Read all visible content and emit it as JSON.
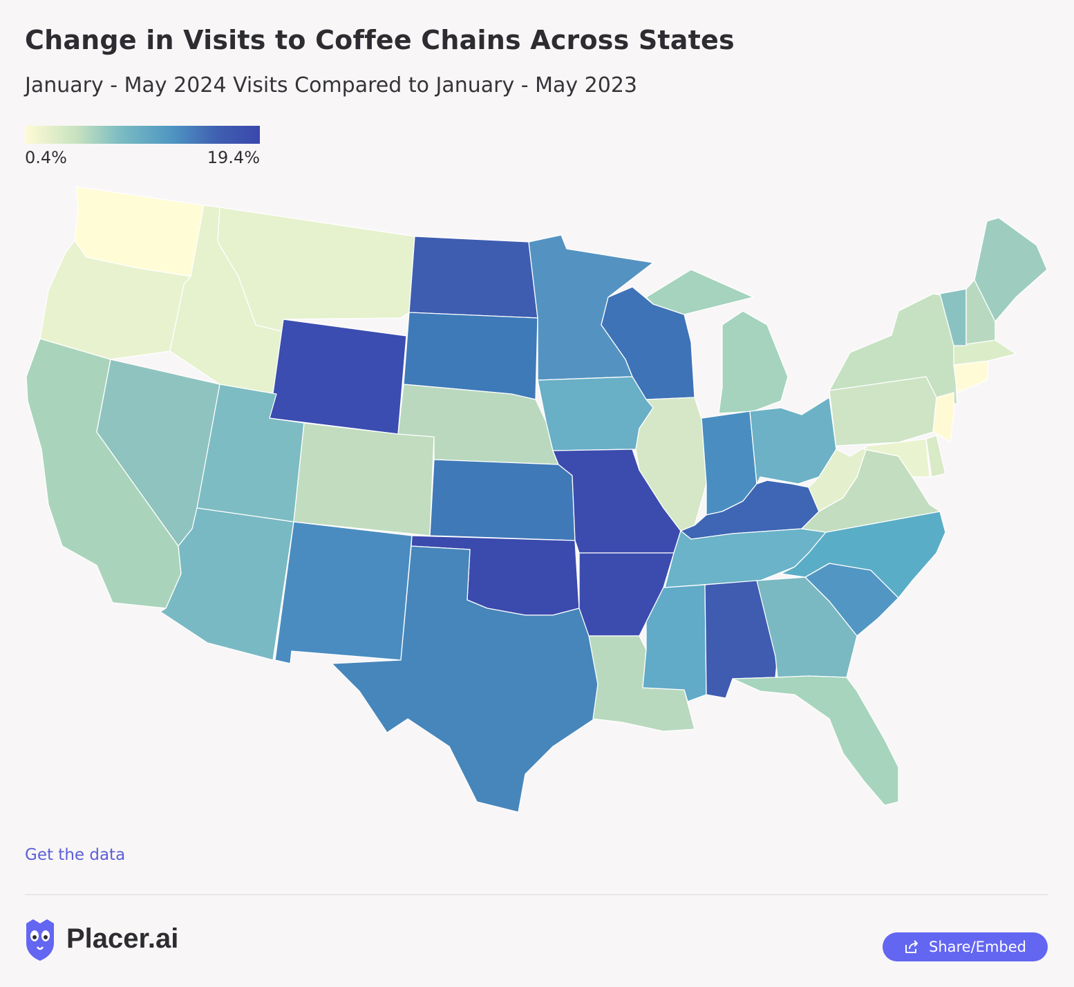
{
  "header": {
    "title": "Change in Visits to Coffee Chains Across States",
    "subtitle": "January - May 2024 Visits Compared to January - May 2023"
  },
  "legend": {
    "min_label": "0.4%",
    "max_label": "19.4%",
    "min_value": 0.4,
    "max_value": 19.4,
    "color_stops": [
      "#fffbd6",
      "#c8e2bf",
      "#7dbdc2",
      "#4f97c3",
      "#3f5fb1",
      "#3b47ad"
    ]
  },
  "map": {
    "region": "United States (contiguous)",
    "metric": "Change in visits, Jan-May 2024 vs Jan-May 2023",
    "states": [
      {
        "state": "WA",
        "color": "#fffcd6"
      },
      {
        "state": "OR",
        "color": "#e8f2cf"
      },
      {
        "state": "CA",
        "color": "#a9d4bb"
      },
      {
        "state": "NV",
        "color": "#8fc3c0"
      },
      {
        "state": "ID",
        "color": "#e6f1ce"
      },
      {
        "state": "MT",
        "color": "#e6f1ce"
      },
      {
        "state": "WY",
        "color": "#3b4db0"
      },
      {
        "state": "UT",
        "color": "#7dbcc2"
      },
      {
        "state": "AZ",
        "color": "#79b9c4"
      },
      {
        "state": "CO",
        "color": "#c1dcbf"
      },
      {
        "state": "NM",
        "color": "#4a8cc0"
      },
      {
        "state": "ND",
        "color": "#3e5db1"
      },
      {
        "state": "SD",
        "color": "#3f7ab8"
      },
      {
        "state": "NE",
        "color": "#b9d8be"
      },
      {
        "state": "KS",
        "color": "#4079b8"
      },
      {
        "state": "OK",
        "color": "#3b4aad"
      },
      {
        "state": "TX",
        "color": "#4786bb"
      },
      {
        "state": "MN",
        "color": "#5493c1"
      },
      {
        "state": "IA",
        "color": "#69afc6"
      },
      {
        "state": "MO",
        "color": "#3c4cae"
      },
      {
        "state": "AR",
        "color": "#3c4cae"
      },
      {
        "state": "LA",
        "color": "#b9d9bf"
      },
      {
        "state": "WI",
        "color": "#3f73b7"
      },
      {
        "state": "IL",
        "color": "#d5e7c6"
      },
      {
        "state": "MI",
        "color": "#a5d3be"
      },
      {
        "state": "IN",
        "color": "#4a8ec1"
      },
      {
        "state": "OH",
        "color": "#6cb1c6"
      },
      {
        "state": "KY",
        "color": "#3e66b4"
      },
      {
        "state": "TN",
        "color": "#6ab3c8"
      },
      {
        "state": "MS",
        "color": "#61aac8"
      },
      {
        "state": "AL",
        "color": "#3f5cb1"
      },
      {
        "state": "GA",
        "color": "#7ab9c2"
      },
      {
        "state": "FL",
        "color": "#a7d4bd"
      },
      {
        "state": "SC",
        "color": "#5297c3"
      },
      {
        "state": "NC",
        "color": "#5aadc6"
      },
      {
        "state": "VA",
        "color": "#c2ddbf"
      },
      {
        "state": "WV",
        "color": "#e4f0cd"
      },
      {
        "state": "PA",
        "color": "#cee4c5"
      },
      {
        "state": "NY",
        "color": "#c6e1c2"
      },
      {
        "state": "MD",
        "color": "#eaf3d0"
      },
      {
        "state": "DE",
        "color": "#d8eac6"
      },
      {
        "state": "NJ",
        "color": "#fffad4"
      },
      {
        "state": "CT",
        "color": "#fffbd6"
      },
      {
        "state": "MA",
        "color": "#dbecc9"
      },
      {
        "state": "VT",
        "color": "#8ac2c1"
      },
      {
        "state": "NH",
        "color": "#b8d9c0"
      },
      {
        "state": "ME",
        "color": "#9ecdc0"
      }
    ]
  },
  "footer": {
    "get_data_link": "Get the data",
    "brand": "Placer.ai",
    "share_button": "Share/Embed"
  }
}
